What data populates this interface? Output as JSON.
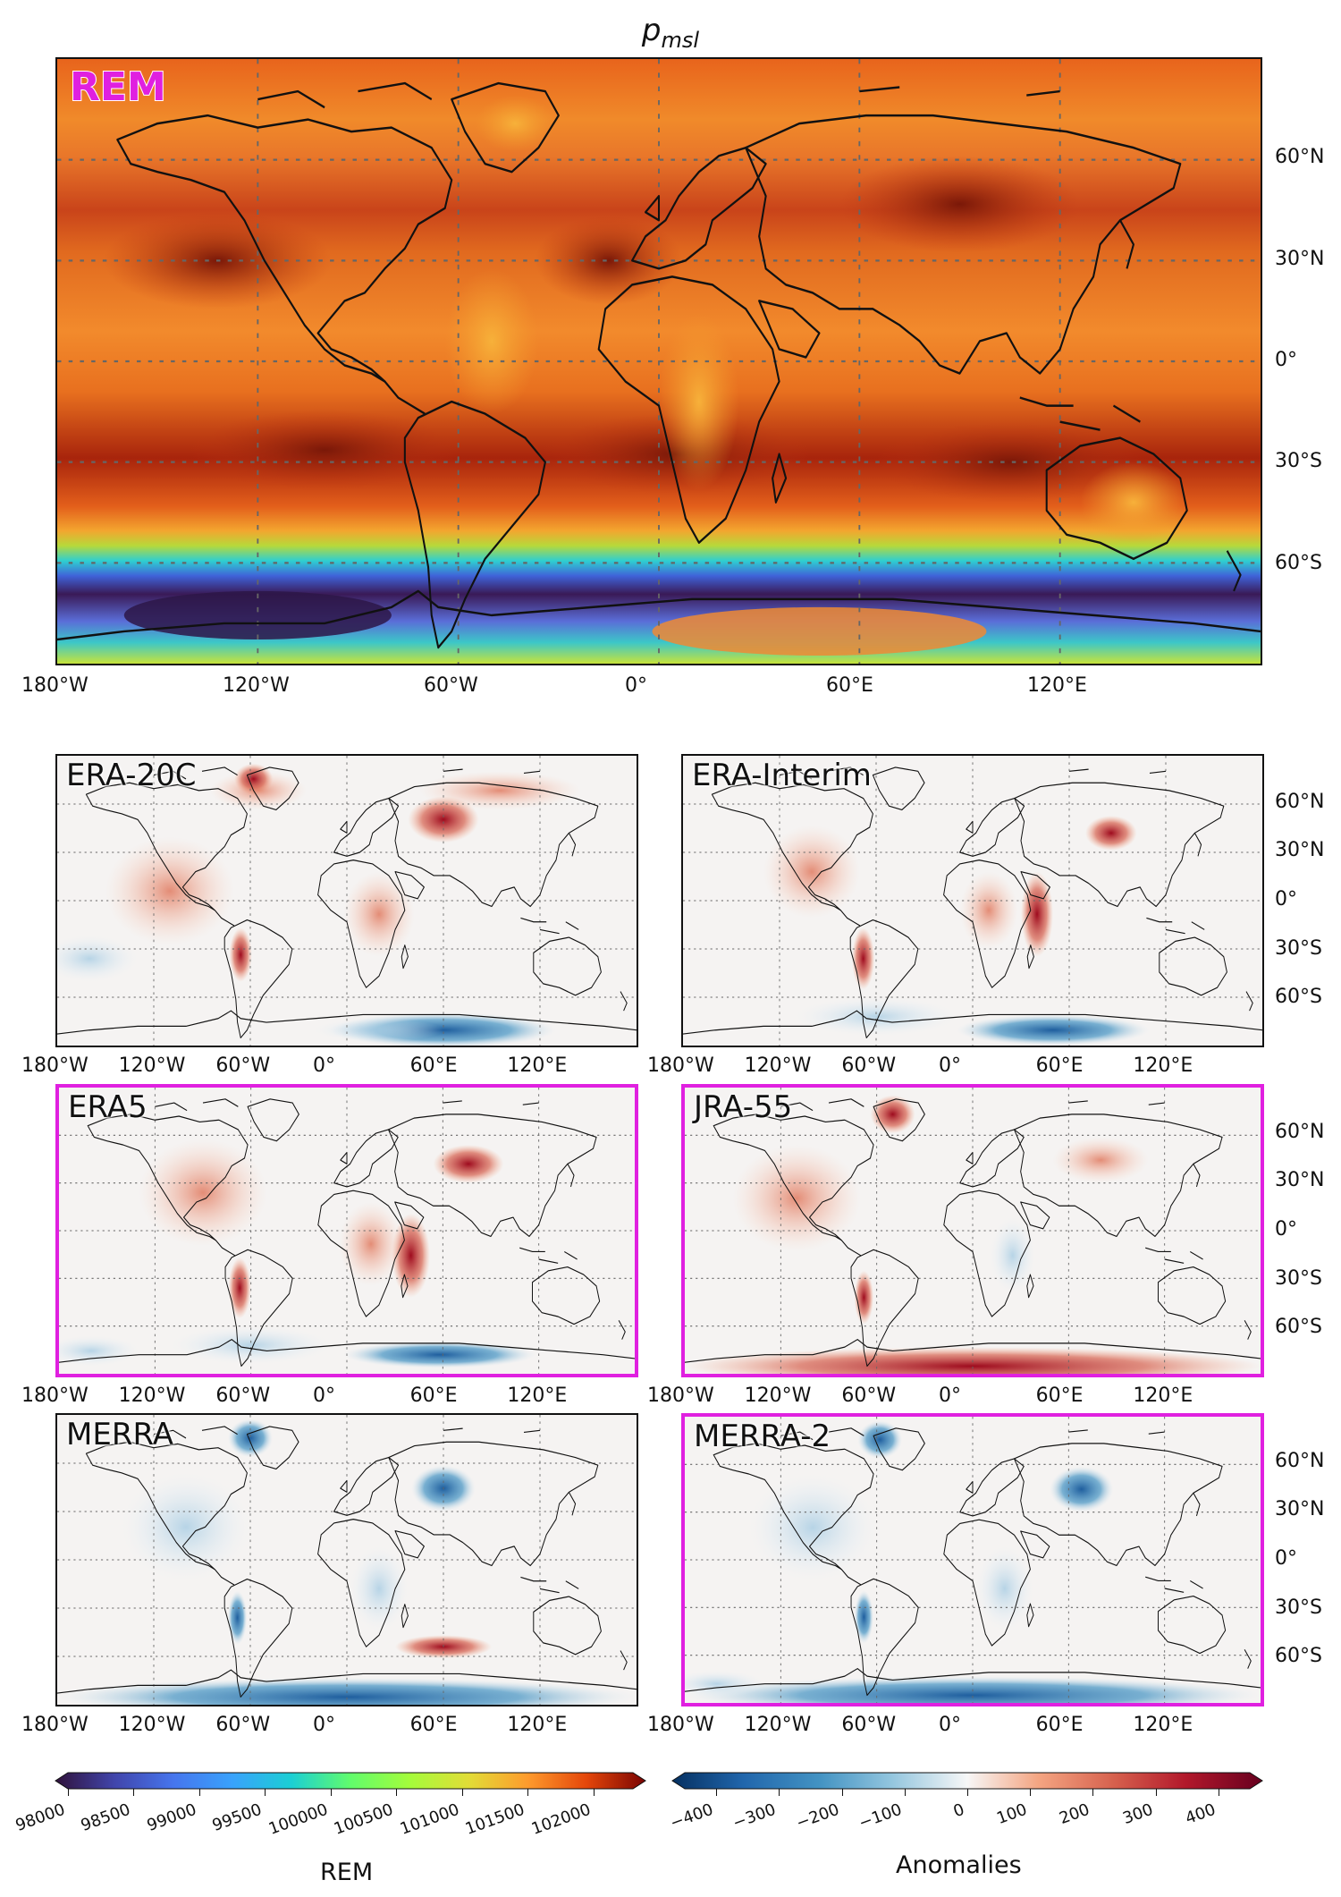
{
  "title": {
    "base": "p",
    "sub": "msl"
  },
  "main_panel": {
    "label": "REM",
    "lon_ticks": [
      "180°W",
      "120°W",
      "60°W",
      "0°",
      "60°E",
      "120°E"
    ],
    "lat_ticks": [
      "60°N",
      "30°N",
      "0°",
      "30°S",
      "60°S"
    ]
  },
  "small_panels": [
    {
      "label": "ERA-20C",
      "highlight": false
    },
    {
      "label": "ERA-Interim",
      "highlight": false
    },
    {
      "label": "ERA5",
      "highlight": true
    },
    {
      "label": "JRA-55",
      "highlight": true
    },
    {
      "label": "MERRA",
      "highlight": false
    },
    {
      "label": "MERRA-2",
      "highlight": true
    }
  ],
  "small_lon_ticks": [
    "180°W",
    "120°W",
    "60°W",
    "0°",
    "60°E",
    "120°E"
  ],
  "small_lat_ticks": [
    "60°N",
    "30°N",
    "0°",
    "30°S",
    "60°S"
  ],
  "colorbar_rem": {
    "title": "REM",
    "ticks": [
      "98000",
      "98500",
      "99000",
      "99500",
      "100000",
      "100500",
      "101000",
      "101500",
      "102000"
    ],
    "min": 98000,
    "max": 102300
  },
  "colorbar_anom": {
    "title": "Anomalies",
    "ticks": [
      "−400",
      "−300",
      "−200",
      "−100",
      "0",
      "100",
      "200",
      "300",
      "400"
    ],
    "min": -450,
    "max": 450
  },
  "colors": {
    "highlight": "#e020e0"
  }
}
